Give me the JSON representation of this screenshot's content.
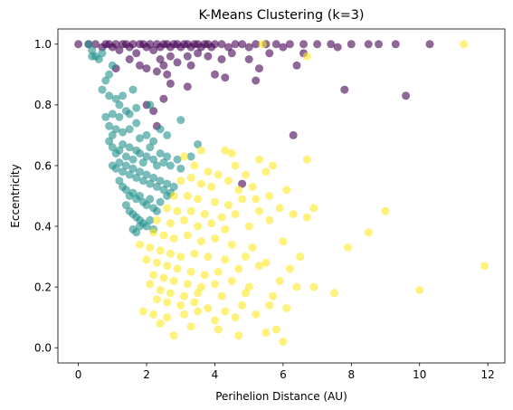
{
  "chart_data": {
    "type": "scatter",
    "title": "K-Means Clustering (k=3)",
    "xlabel": "Perihelion Distance (AU)",
    "ylabel": "Eccentricity",
    "xlim": [
      -0.6,
      12.5
    ],
    "ylim": [
      -0.05,
      1.05
    ],
    "xticks": [
      "0",
      "2",
      "4",
      "6",
      "8",
      "10",
      "12"
    ],
    "yticks": [
      "0.0",
      "0.2",
      "0.4",
      "0.6",
      "0.8",
      "1.0"
    ],
    "xtick_values": [
      0,
      2,
      4,
      6,
      8,
      10,
      12
    ],
    "ytick_values": [
      0.0,
      0.2,
      0.4,
      0.6,
      0.8,
      1.0
    ],
    "grid": false,
    "marker_alpha": 0.6,
    "series": [
      {
        "color": "#440154",
        "points": [
          [
            0.0,
            1.0
          ],
          [
            0.3,
            1.0
          ],
          [
            0.5,
            1.0
          ],
          [
            0.7,
            0.99
          ],
          [
            0.8,
            1.0
          ],
          [
            0.9,
            1.0
          ],
          [
            1.0,
            0.99
          ],
          [
            1.1,
            1.0
          ],
          [
            1.2,
            0.98
          ],
          [
            1.3,
            1.0
          ],
          [
            1.4,
            1.0
          ],
          [
            1.5,
            0.99
          ],
          [
            1.6,
            1.0
          ],
          [
            1.7,
            0.97
          ],
          [
            1.8,
            1.0
          ],
          [
            1.9,
            1.0
          ],
          [
            2.0,
            0.99
          ],
          [
            2.1,
            1.0
          ],
          [
            2.2,
            0.98
          ],
          [
            2.3,
            1.0
          ],
          [
            2.4,
            0.99
          ],
          [
            2.5,
            1.0
          ],
          [
            2.6,
            1.0
          ],
          [
            2.7,
            0.99
          ],
          [
            2.8,
            1.0
          ],
          [
            2.9,
            1.0
          ],
          [
            3.0,
            0.99
          ],
          [
            3.1,
            1.0
          ],
          [
            3.2,
            1.0
          ],
          [
            3.3,
            0.99
          ],
          [
            3.4,
            1.0
          ],
          [
            3.5,
            1.0
          ],
          [
            3.6,
            0.99
          ],
          [
            3.7,
            1.0
          ],
          [
            3.8,
            1.0
          ],
          [
            3.9,
            0.99
          ],
          [
            4.0,
            1.0
          ],
          [
            4.2,
            1.0
          ],
          [
            4.4,
            0.99
          ],
          [
            4.6,
            1.0
          ],
          [
            4.8,
            1.0
          ],
          [
            5.0,
            0.99
          ],
          [
            5.2,
            1.0
          ],
          [
            5.5,
            1.0
          ],
          [
            5.8,
            1.0
          ],
          [
            6.0,
            0.99
          ],
          [
            6.2,
            1.0
          ],
          [
            6.6,
            1.0
          ],
          [
            7.0,
            1.0
          ],
          [
            7.4,
            1.0
          ],
          [
            7.6,
            0.99
          ],
          [
            8.0,
            1.0
          ],
          [
            8.5,
            1.0
          ],
          [
            8.8,
            1.0
          ],
          [
            9.3,
            1.0
          ],
          [
            10.3,
            1.0
          ],
          [
            1.1,
            0.92
          ],
          [
            1.5,
            0.95
          ],
          [
            1.8,
            0.93
          ],
          [
            2.0,
            0.92
          ],
          [
            2.3,
            0.91
          ],
          [
            2.4,
            0.95
          ],
          [
            2.5,
            0.93
          ],
          [
            2.6,
            0.9
          ],
          [
            2.7,
            0.96
          ],
          [
            2.9,
            0.94
          ],
          [
            3.2,
            0.96
          ],
          [
            3.3,
            0.93
          ],
          [
            3.5,
            0.97
          ],
          [
            3.8,
            0.96
          ],
          [
            4.0,
            0.9
          ],
          [
            4.2,
            0.95
          ],
          [
            4.5,
            0.97
          ],
          [
            5.0,
            0.95
          ],
          [
            5.3,
            0.92
          ],
          [
            5.6,
            0.97
          ],
          [
            6.4,
            0.93
          ],
          [
            6.6,
            0.97
          ],
          [
            2.0,
            0.8
          ],
          [
            2.2,
            0.78
          ],
          [
            2.5,
            0.82
          ],
          [
            2.7,
            0.87
          ],
          [
            2.3,
            0.73
          ],
          [
            3.2,
            0.86
          ],
          [
            4.3,
            0.89
          ],
          [
            5.2,
            0.88
          ],
          [
            7.8,
            0.85
          ],
          [
            9.6,
            0.83
          ],
          [
            6.3,
            0.7
          ],
          [
            4.8,
            0.54
          ]
        ]
      },
      {
        "color": "#21918c",
        "points": [
          [
            0.3,
            1.0
          ],
          [
            0.4,
            0.98
          ],
          [
            0.5,
            0.96
          ],
          [
            0.6,
            0.95
          ],
          [
            0.7,
            0.97
          ],
          [
            0.4,
            0.96
          ],
          [
            1.0,
            0.93
          ],
          [
            0.9,
            0.9
          ],
          [
            0.8,
            0.88
          ],
          [
            0.7,
            0.85
          ],
          [
            0.9,
            0.83
          ],
          [
            1.1,
            0.82
          ],
          [
            1.3,
            0.83
          ],
          [
            1.6,
            0.85
          ],
          [
            1.2,
            0.8
          ],
          [
            1.4,
            0.78
          ],
          [
            1.0,
            0.77
          ],
          [
            1.2,
            0.76
          ],
          [
            1.5,
            0.77
          ],
          [
            1.7,
            0.79
          ],
          [
            2.1,
            0.8
          ],
          [
            0.8,
            0.76
          ],
          [
            0.9,
            0.73
          ],
          [
            1.0,
            0.7
          ],
          [
            1.1,
            0.72
          ],
          [
            1.3,
            0.71
          ],
          [
            1.5,
            0.72
          ],
          [
            1.7,
            0.74
          ],
          [
            1.8,
            0.69
          ],
          [
            2.0,
            0.7
          ],
          [
            2.2,
            0.68
          ],
          [
            2.4,
            0.72
          ],
          [
            2.6,
            0.7
          ],
          [
            3.0,
            0.75
          ],
          [
            0.9,
            0.68
          ],
          [
            1.0,
            0.66
          ],
          [
            1.1,
            0.64
          ],
          [
            1.2,
            0.65
          ],
          [
            1.3,
            0.67
          ],
          [
            1.4,
            0.63
          ],
          [
            1.5,
            0.66
          ],
          [
            1.6,
            0.62
          ],
          [
            1.7,
            0.65
          ],
          [
            1.8,
            0.64
          ],
          [
            1.9,
            0.61
          ],
          [
            2.0,
            0.63
          ],
          [
            2.1,
            0.66
          ],
          [
            2.2,
            0.62
          ],
          [
            2.3,
            0.6
          ],
          [
            2.4,
            0.64
          ],
          [
            2.5,
            0.61
          ],
          [
            2.6,
            0.63
          ],
          [
            2.7,
            0.6
          ],
          [
            2.9,
            0.62
          ],
          [
            3.0,
            0.59
          ],
          [
            3.3,
            0.63
          ],
          [
            1.0,
            0.6
          ],
          [
            1.1,
            0.59
          ],
          [
            1.2,
            0.61
          ],
          [
            1.3,
            0.58
          ],
          [
            1.4,
            0.6
          ],
          [
            1.5,
            0.57
          ],
          [
            1.6,
            0.59
          ],
          [
            1.7,
            0.56
          ],
          [
            1.8,
            0.58
          ],
          [
            1.9,
            0.55
          ],
          [
            2.0,
            0.57
          ],
          [
            2.1,
            0.54
          ],
          [
            2.2,
            0.56
          ],
          [
            2.3,
            0.53
          ],
          [
            2.4,
            0.55
          ],
          [
            2.5,
            0.52
          ],
          [
            2.6,
            0.54
          ],
          [
            2.7,
            0.51
          ],
          [
            2.8,
            0.53
          ],
          [
            1.2,
            0.55
          ],
          [
            1.3,
            0.53
          ],
          [
            1.4,
            0.52
          ],
          [
            1.5,
            0.5
          ],
          [
            1.6,
            0.51
          ],
          [
            1.7,
            0.49
          ],
          [
            1.8,
            0.5
          ],
          [
            1.9,
            0.48
          ],
          [
            2.0,
            0.47
          ],
          [
            2.1,
            0.49
          ],
          [
            2.2,
            0.46
          ],
          [
            2.3,
            0.45
          ],
          [
            1.4,
            0.47
          ],
          [
            1.5,
            0.45
          ],
          [
            1.6,
            0.44
          ],
          [
            1.7,
            0.43
          ],
          [
            1.8,
            0.42
          ],
          [
            1.9,
            0.41
          ],
          [
            2.0,
            0.4
          ],
          [
            2.1,
            0.42
          ],
          [
            2.2,
            0.39
          ],
          [
            1.6,
            0.39
          ],
          [
            1.7,
            0.38
          ],
          [
            1.8,
            0.4
          ],
          [
            2.4,
            0.48
          ],
          [
            2.6,
            0.5
          ],
          [
            3.5,
            0.67
          ]
        ]
      },
      {
        "color": "#fde725",
        "points": [
          [
            5.4,
            1.0
          ],
          [
            6.7,
            0.96
          ],
          [
            11.3,
            1.0
          ],
          [
            3.1,
            0.63
          ],
          [
            3.6,
            0.65
          ],
          [
            4.3,
            0.65
          ],
          [
            4.5,
            0.64
          ],
          [
            5.3,
            0.62
          ],
          [
            5.7,
            0.6
          ],
          [
            6.7,
            0.62
          ],
          [
            3.4,
            0.6
          ],
          [
            3.8,
            0.58
          ],
          [
            4.1,
            0.57
          ],
          [
            4.6,
            0.6
          ],
          [
            4.9,
            0.57
          ],
          [
            5.5,
            0.58
          ],
          [
            3.0,
            0.55
          ],
          [
            3.3,
            0.56
          ],
          [
            3.6,
            0.54
          ],
          [
            3.9,
            0.53
          ],
          [
            4.4,
            0.55
          ],
          [
            4.7,
            0.52
          ],
          [
            5.1,
            0.53
          ],
          [
            5.6,
            0.5
          ],
          [
            6.1,
            0.52
          ],
          [
            2.8,
            0.5
          ],
          [
            3.2,
            0.5
          ],
          [
            3.5,
            0.49
          ],
          [
            4.0,
            0.48
          ],
          [
            4.4,
            0.47
          ],
          [
            4.8,
            0.49
          ],
          [
            5.2,
            0.49
          ],
          [
            2.6,
            0.46
          ],
          [
            2.9,
            0.45
          ],
          [
            3.3,
            0.45
          ],
          [
            3.7,
            0.44
          ],
          [
            4.2,
            0.43
          ],
          [
            4.6,
            0.44
          ],
          [
            5.3,
            0.45
          ],
          [
            5.9,
            0.46
          ],
          [
            6.3,
            0.44
          ],
          [
            6.9,
            0.46
          ],
          [
            9.0,
            0.45
          ],
          [
            2.3,
            0.42
          ],
          [
            2.7,
            0.41
          ],
          [
            3.1,
            0.42
          ],
          [
            3.5,
            0.4
          ],
          [
            3.9,
            0.41
          ],
          [
            4.3,
            0.39
          ],
          [
            5.0,
            0.4
          ],
          [
            5.6,
            0.42
          ],
          [
            6.7,
            0.43
          ],
          [
            2.2,
            0.38
          ],
          [
            2.5,
            0.37
          ],
          [
            2.8,
            0.36
          ],
          [
            3.2,
            0.37
          ],
          [
            3.6,
            0.35
          ],
          [
            4.0,
            0.36
          ],
          [
            4.5,
            0.34
          ],
          [
            5.1,
            0.33
          ],
          [
            6.0,
            0.35
          ],
          [
            7.9,
            0.33
          ],
          [
            8.5,
            0.38
          ],
          [
            1.8,
            0.34
          ],
          [
            2.1,
            0.33
          ],
          [
            2.4,
            0.32
          ],
          [
            2.7,
            0.31
          ],
          [
            3.0,
            0.3
          ],
          [
            3.4,
            0.31
          ],
          [
            3.8,
            0.3
          ],
          [
            4.3,
            0.29
          ],
          [
            4.9,
            0.3
          ],
          [
            5.5,
            0.28
          ],
          [
            6.5,
            0.3
          ],
          [
            2.0,
            0.29
          ],
          [
            2.3,
            0.28
          ],
          [
            2.6,
            0.27
          ],
          [
            2.9,
            0.26
          ],
          [
            3.3,
            0.25
          ],
          [
            3.7,
            0.24
          ],
          [
            4.1,
            0.25
          ],
          [
            4.7,
            0.26
          ],
          [
            5.3,
            0.27
          ],
          [
            6.2,
            0.26
          ],
          [
            11.9,
            0.27
          ],
          [
            2.2,
            0.24
          ],
          [
            2.5,
            0.23
          ],
          [
            2.8,
            0.22
          ],
          [
            3.2,
            0.21
          ],
          [
            3.6,
            0.2
          ],
          [
            4.0,
            0.21
          ],
          [
            4.5,
            0.22
          ],
          [
            5.0,
            0.2
          ],
          [
            5.9,
            0.22
          ],
          [
            2.1,
            0.21
          ],
          [
            2.4,
            0.19
          ],
          [
            2.7,
            0.18
          ],
          [
            3.1,
            0.17
          ],
          [
            3.5,
            0.18
          ],
          [
            4.2,
            0.17
          ],
          [
            4.9,
            0.18
          ],
          [
            5.7,
            0.17
          ],
          [
            6.4,
            0.2
          ],
          [
            6.9,
            0.2
          ],
          [
            7.5,
            0.18
          ],
          [
            10.0,
            0.19
          ],
          [
            2.3,
            0.16
          ],
          [
            2.6,
            0.15
          ],
          [
            3.0,
            0.14
          ],
          [
            3.4,
            0.15
          ],
          [
            3.8,
            0.13
          ],
          [
            4.3,
            0.12
          ],
          [
            4.8,
            0.14
          ],
          [
            5.6,
            0.14
          ],
          [
            6.1,
            0.13
          ],
          [
            1.9,
            0.12
          ],
          [
            2.2,
            0.11
          ],
          [
            2.6,
            0.1
          ],
          [
            3.1,
            0.11
          ],
          [
            3.5,
            0.12
          ],
          [
            4.0,
            0.09
          ],
          [
            4.6,
            0.1
          ],
          [
            5.2,
            0.11
          ],
          [
            2.4,
            0.08
          ],
          [
            3.3,
            0.07
          ],
          [
            4.1,
            0.06
          ],
          [
            4.7,
            0.04
          ],
          [
            5.5,
            0.05
          ],
          [
            6.0,
            0.02
          ],
          [
            5.8,
            0.06
          ],
          [
            2.8,
            0.04
          ]
        ]
      }
    ]
  }
}
